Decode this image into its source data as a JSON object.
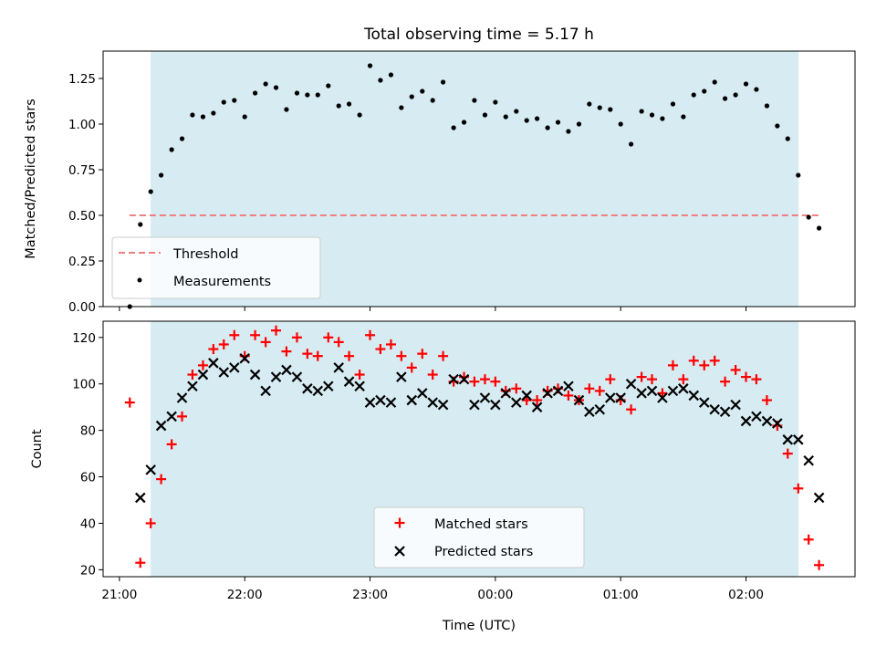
{
  "chart_data": [
    {
      "type": "scatter",
      "title": "Total observing time = 5.17 h",
      "ylabel": "Matched/Predicted stars",
      "xlim": [
        -0.13,
        5.87
      ],
      "ylim": [
        0,
        1.4
      ],
      "yticks": [
        0,
        0.25,
        0.5,
        0.75,
        1.0,
        1.25
      ],
      "ytick_labels": [
        "0.00",
        "0.25",
        "0.50",
        "0.75",
        "1.00",
        "1.25"
      ],
      "shaded_span": [
        0.25,
        5.42
      ],
      "shade_color": "#add8e6",
      "threshold": {
        "name": "Threshold",
        "value": 0.5,
        "x_range": [
          0.08,
          5.58
        ],
        "color": "#f08080",
        "style": "dashed"
      },
      "series": [
        {
          "name": "Measurements",
          "color": "#000000",
          "marker": "dot",
          "x": [
            0.083,
            0.167,
            0.25,
            0.333,
            0.417,
            0.5,
            0.583,
            0.667,
            0.75,
            0.833,
            0.917,
            1.0,
            1.083,
            1.167,
            1.25,
            1.333,
            1.417,
            1.5,
            1.583,
            1.667,
            1.75,
            1.833,
            1.917,
            2.0,
            2.083,
            2.167,
            2.25,
            2.333,
            2.417,
            2.5,
            2.583,
            2.667,
            2.75,
            2.833,
            2.917,
            3.0,
            3.083,
            3.167,
            3.25,
            3.333,
            3.417,
            3.5,
            3.583,
            3.667,
            3.75,
            3.833,
            3.917,
            4.0,
            4.083,
            4.167,
            4.25,
            4.333,
            4.417,
            4.5,
            4.583,
            4.667,
            4.75,
            4.833,
            4.917,
            5.0,
            5.083,
            5.167,
            5.25,
            5.333,
            5.417,
            5.5,
            5.583
          ],
          "y": [
            0.0,
            0.45,
            0.63,
            0.72,
            0.86,
            0.92,
            1.05,
            1.04,
            1.06,
            1.12,
            1.13,
            1.04,
            1.17,
            1.22,
            1.2,
            1.08,
            1.17,
            1.16,
            1.16,
            1.21,
            1.1,
            1.11,
            1.05,
            1.32,
            1.24,
            1.27,
            1.09,
            1.15,
            1.18,
            1.13,
            1.23,
            0.98,
            1.01,
            1.13,
            1.05,
            1.12,
            1.04,
            1.07,
            1.02,
            1.03,
            0.98,
            1.01,
            0.96,
            1.0,
            1.11,
            1.09,
            1.08,
            1.0,
            0.89,
            1.07,
            1.05,
            1.03,
            1.11,
            1.04,
            1.16,
            1.18,
            1.23,
            1.14,
            1.16,
            1.22,
            1.19,
            1.1,
            0.99,
            0.92,
            0.72,
            0.49,
            0.43
          ]
        }
      ],
      "legend": {
        "position": "lower-left"
      }
    },
    {
      "type": "scatter",
      "xlabel": "Time (UTC)",
      "ylabel": "Count",
      "xlim": [
        -0.13,
        5.87
      ],
      "ylim": [
        17,
        127
      ],
      "xticks": [
        0,
        1,
        2,
        3,
        4,
        5
      ],
      "xtick_labels": [
        "21:00",
        "22:00",
        "23:00",
        "00:00",
        "01:00",
        "02:00"
      ],
      "yticks": [
        20,
        40,
        60,
        80,
        100,
        120
      ],
      "ytick_labels": [
        "20",
        "40",
        "60",
        "80",
        "100",
        "120"
      ],
      "shaded_span": [
        0.25,
        5.42
      ],
      "shade_color": "#add8e6",
      "series": [
        {
          "name": "Matched stars",
          "color": "#ff0000",
          "marker": "plus",
          "x": [
            0.083,
            0.167,
            0.25,
            0.333,
            0.417,
            0.5,
            0.583,
            0.667,
            0.75,
            0.833,
            0.917,
            1.0,
            1.083,
            1.167,
            1.25,
            1.333,
            1.417,
            1.5,
            1.583,
            1.667,
            1.75,
            1.833,
            1.917,
            2.0,
            2.083,
            2.167,
            2.25,
            2.333,
            2.417,
            2.5,
            2.583,
            2.667,
            2.75,
            2.833,
            2.917,
            3.0,
            3.083,
            3.167,
            3.25,
            3.333,
            3.417,
            3.5,
            3.583,
            3.667,
            3.75,
            3.833,
            3.917,
            4.0,
            4.083,
            4.167,
            4.25,
            4.333,
            4.417,
            4.5,
            4.583,
            4.667,
            4.75,
            4.833,
            4.917,
            5.0,
            5.083,
            5.167,
            5.25,
            5.333,
            5.417,
            5.5,
            5.583
          ],
          "y": [
            92,
            23,
            40,
            59,
            74,
            86,
            104,
            108,
            115,
            117,
            121,
            112,
            121,
            118,
            123,
            114,
            120,
            113,
            112,
            120,
            118,
            112,
            104,
            121,
            115,
            117,
            112,
            107,
            113,
            104,
            112,
            101,
            103,
            101,
            102,
            101,
            97,
            98,
            93,
            93,
            97,
            98,
            95,
            93,
            98,
            97,
            102,
            93,
            89,
            103,
            102,
            96,
            108,
            102,
            110,
            108,
            110,
            101,
            106,
            103,
            102,
            93,
            82,
            70,
            55,
            33,
            22
          ]
        },
        {
          "name": "Predicted stars",
          "color": "#000000",
          "marker": "x",
          "x": [
            0.167,
            0.25,
            0.333,
            0.417,
            0.5,
            0.583,
            0.667,
            0.75,
            0.833,
            0.917,
            1.0,
            1.083,
            1.167,
            1.25,
            1.333,
            1.417,
            1.5,
            1.583,
            1.667,
            1.75,
            1.833,
            1.917,
            2.0,
            2.083,
            2.167,
            2.25,
            2.333,
            2.417,
            2.5,
            2.583,
            2.667,
            2.75,
            2.833,
            2.917,
            3.0,
            3.083,
            3.167,
            3.25,
            3.333,
            3.417,
            3.5,
            3.583,
            3.667,
            3.75,
            3.833,
            3.917,
            4.0,
            4.083,
            4.167,
            4.25,
            4.333,
            4.417,
            4.5,
            4.583,
            4.667,
            4.75,
            4.833,
            4.917,
            5.0,
            5.083,
            5.167,
            5.25,
            5.333,
            5.417,
            5.5,
            5.583
          ],
          "y": [
            51,
            63,
            82,
            86,
            94,
            99,
            104,
            109,
            105,
            107,
            111,
            104,
            97,
            103,
            106,
            103,
            98,
            97,
            99,
            107,
            101,
            99,
            92,
            93,
            92,
            103,
            93,
            96,
            92,
            91,
            102,
            102,
            91,
            94,
            91,
            96,
            92,
            95,
            90,
            96,
            97,
            99,
            93,
            88,
            89,
            94,
            94,
            100,
            96,
            97,
            94,
            97,
            98,
            95,
            92,
            89,
            88,
            91,
            84,
            86,
            84,
            83,
            76,
            76,
            67,
            51
          ]
        }
      ],
      "legend": {
        "position": "lower-center"
      }
    }
  ]
}
